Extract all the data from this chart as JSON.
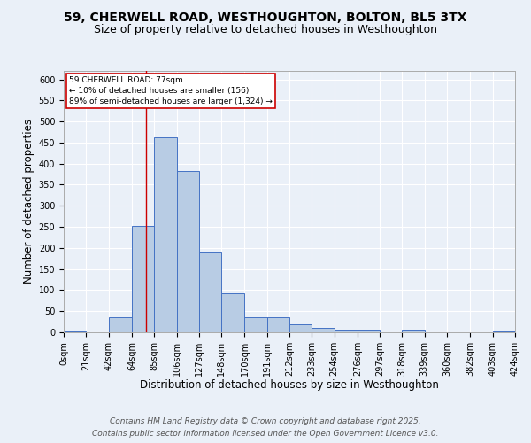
{
  "title_line1": "59, CHERWELL ROAD, WESTHOUGHTON, BOLTON, BL5 3TX",
  "title_line2": "Size of property relative to detached houses in Westhoughton",
  "xlabel": "Distribution of detached houses by size in Westhoughton",
  "ylabel": "Number of detached properties",
  "bin_edges": [
    0,
    21,
    42,
    64,
    85,
    106,
    127,
    148,
    170,
    191,
    212,
    233,
    254,
    276,
    297,
    318,
    339,
    360,
    382,
    403,
    424
  ],
  "bin_counts": [
    3,
    1,
    35,
    253,
    463,
    383,
    191,
    93,
    36,
    36,
    18,
    11,
    5,
    4,
    1,
    4,
    1,
    1,
    1,
    3
  ],
  "bar_color": "#b8cce4",
  "bar_edge_color": "#4472c4",
  "bg_color": "#eaf0f8",
  "grid_color": "#ffffff",
  "red_line_x": 77,
  "annotation_text": "59 CHERWELL ROAD: 77sqm\n← 10% of detached houses are smaller (156)\n89% of semi-detached houses are larger (1,324) →",
  "annotation_box_color": "#ffffff",
  "annotation_box_edge": "#cc0000",
  "ylim": [
    0,
    620
  ],
  "yticks": [
    0,
    50,
    100,
    150,
    200,
    250,
    300,
    350,
    400,
    450,
    500,
    550,
    600
  ],
  "xtick_labels": [
    "0sqm",
    "21sqm",
    "42sqm",
    "64sqm",
    "85sqm",
    "106sqm",
    "127sqm",
    "148sqm",
    "170sqm",
    "191sqm",
    "212sqm",
    "233sqm",
    "254sqm",
    "276sqm",
    "297sqm",
    "318sqm",
    "339sqm",
    "360sqm",
    "382sqm",
    "403sqm",
    "424sqm"
  ],
  "footer_line1": "Contains HM Land Registry data © Crown copyright and database right 2025.",
  "footer_line2": "Contains public sector information licensed under the Open Government Licence v3.0.",
  "title_fontsize": 10,
  "subtitle_fontsize": 9,
  "axis_label_fontsize": 8.5,
  "tick_fontsize": 7,
  "footer_fontsize": 6.5,
  "annot_fontsize": 6.5
}
